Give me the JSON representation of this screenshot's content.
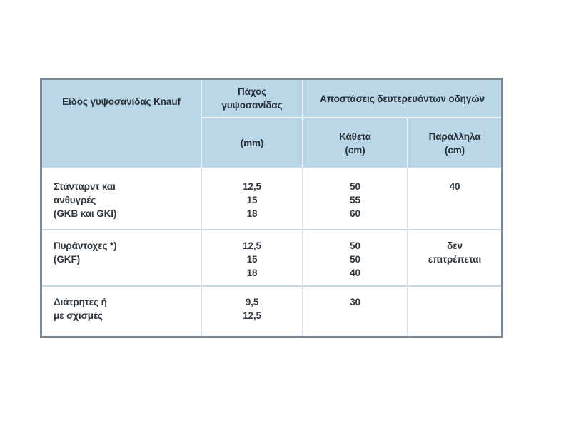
{
  "page": {
    "background": "#ffffff"
  },
  "table": {
    "description": "Knauf plasterboard secondary-channel spacing table",
    "colors": {
      "header_bg": "#b9d7e7",
      "outer_border": "#7a8993",
      "header_divider": "#e9f2f7",
      "body_divider_vertical": "#d9e2e7",
      "body_divider_horizontal": "#c9d8e0",
      "text": "#2f3840"
    },
    "header": {
      "type_label": "Είδος γυψοσανίδας Knauf",
      "thickness_lines": [
        "Πάχος",
        "γυψοσανίδας"
      ],
      "thickness_unit": "(mm)",
      "distances_group_label": "Αποστάσεις δευτερευόντων οδηγών",
      "vertical_lines": [
        "Κάθετα",
        "(cm)"
      ],
      "parallel_lines": [
        "Παράλληλα",
        "(cm)"
      ]
    },
    "rows": [
      {
        "type_lines": [
          "Στάνταρντ και",
          "ανθυγρές",
          "(GKB και GKI)"
        ],
        "thickness_lines": [
          "12,5",
          "15",
          "18"
        ],
        "vertical_lines": [
          "50",
          "55",
          "60"
        ],
        "parallel_lines": [
          "40"
        ]
      },
      {
        "type_lines": [
          "Πυράντοχες *)",
          "(GKF)"
        ],
        "thickness_lines": [
          "12,5",
          "15",
          "18"
        ],
        "vertical_lines": [
          "50",
          "50",
          "40"
        ],
        "parallel_lines": [
          "δεν",
          "επιτρέπεται"
        ]
      },
      {
        "type_lines": [
          "Διάτρητες ή",
          "με σχισμές"
        ],
        "thickness_lines": [
          "9,5",
          "12,5"
        ],
        "vertical_lines": [
          "30"
        ],
        "parallel_lines": []
      }
    ]
  }
}
